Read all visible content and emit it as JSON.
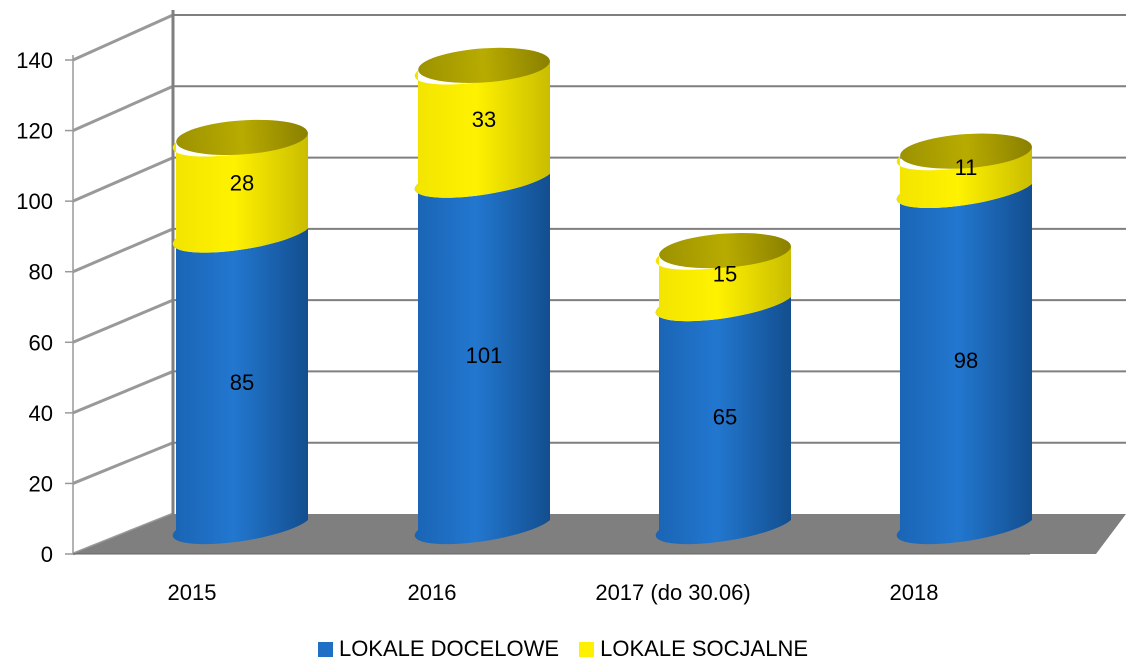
{
  "chart_data": {
    "type": "bar",
    "stacked": true,
    "three_d": true,
    "bar_shape": "cylinder",
    "categories": [
      "2015",
      "2016",
      "2017 (do 30.06)",
      "2018"
    ],
    "series": [
      {
        "name": "LOKALE DOCELOWE",
        "values": [
          85,
          101,
          65,
          98
        ],
        "color": "#1F6FC5"
      },
      {
        "name": "LOKALE SOCJALNE",
        "values": [
          28,
          33,
          15,
          11
        ],
        "color": "#FFF000"
      }
    ],
    "data_labels": [
      [
        "85",
        "101",
        "65",
        "98"
      ],
      [
        "28",
        "33",
        "15",
        "11"
      ]
    ],
    "y_ticks": [
      "0",
      "20",
      "40",
      "60",
      "80",
      "100",
      "120",
      "140"
    ],
    "ylim": [
      0,
      140
    ],
    "grid": true,
    "legend_position": "bottom",
    "title": "",
    "xlabel": "",
    "ylabel": "",
    "floor_color": "#7F7F7F",
    "grid_color": "#7F7F7F"
  }
}
